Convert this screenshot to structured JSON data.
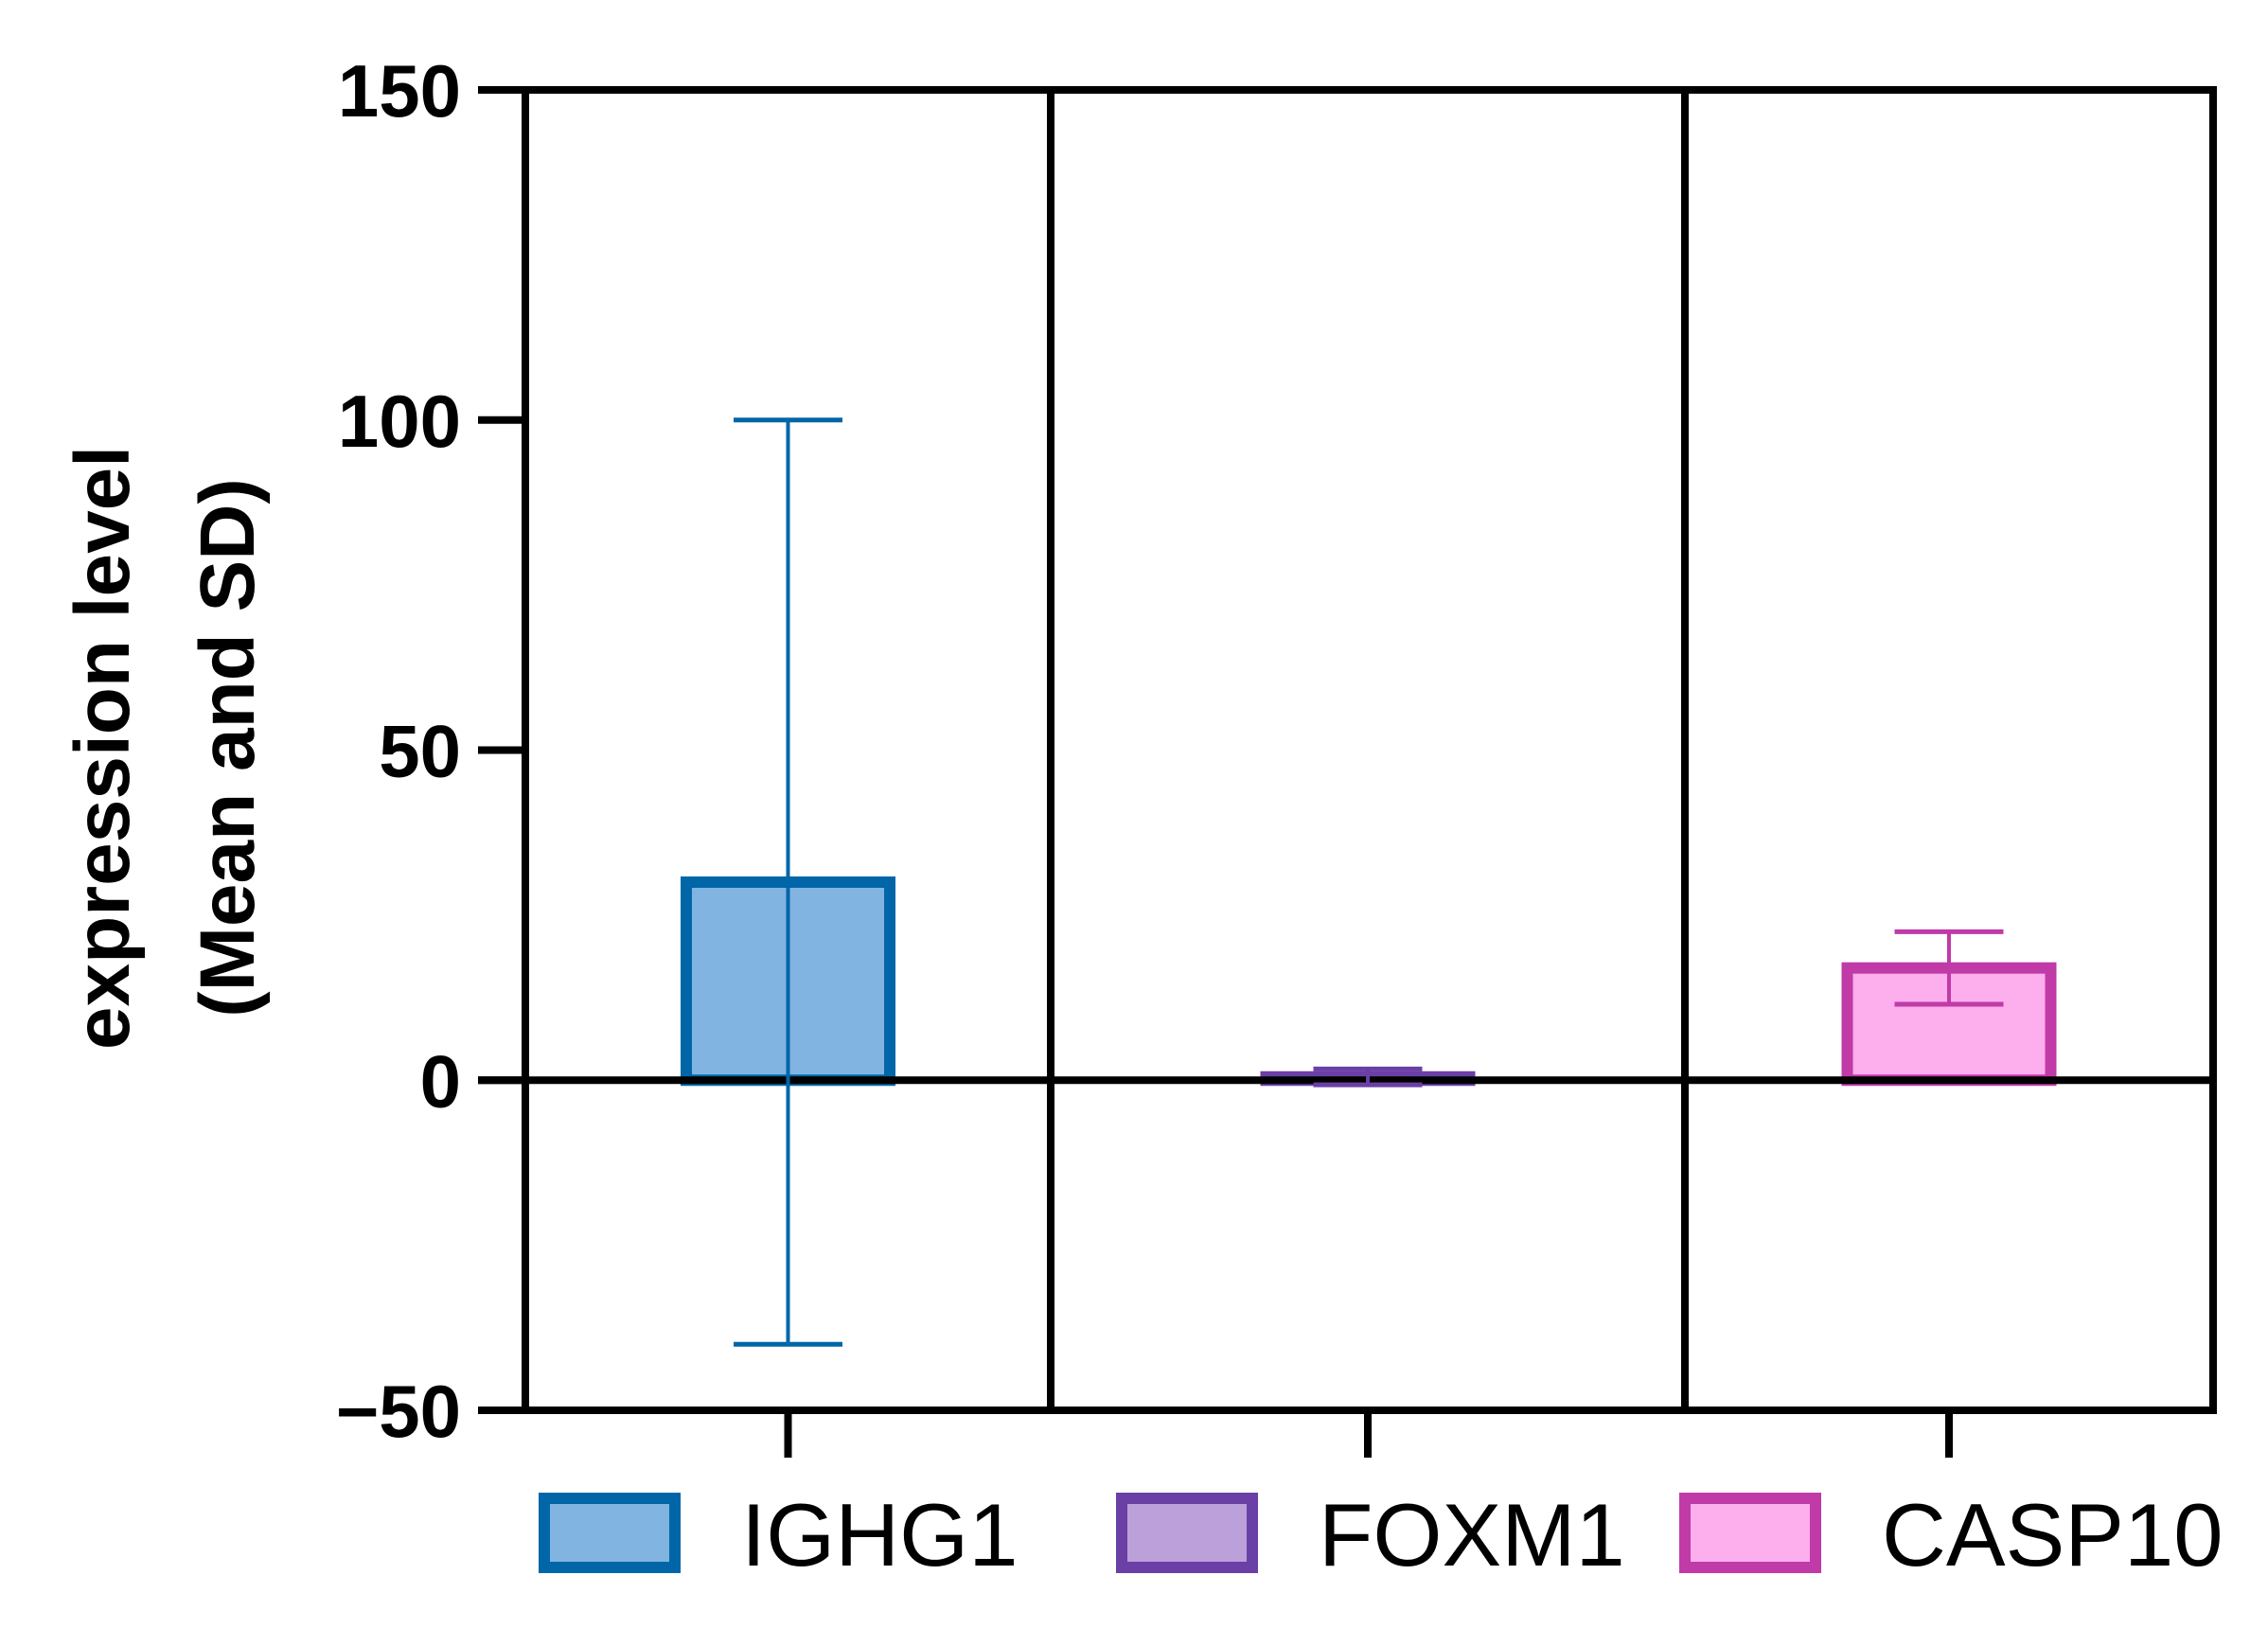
{
  "chart_data": {
    "type": "bar",
    "categories": [
      "IGHG1",
      "FOXM1",
      "CASP10"
    ],
    "series": [
      {
        "name": "IGHG1",
        "mean": 30,
        "sd": 70,
        "fill": "#82b4e2",
        "stroke": "#0066a8"
      },
      {
        "name": "FOXM1",
        "mean": 0.5,
        "sd": 1.2,
        "fill": "#bca0d9",
        "stroke": "#6a3fa6"
      },
      {
        "name": "CASP10",
        "mean": 17,
        "sd": 5.5,
        "fill": "#fcaeed",
        "stroke": "#c03aa8"
      }
    ],
    "ylabel_line1": "expression level",
    "ylabel_line2": "(Mean and SD)",
    "ylim": [
      -50,
      150
    ],
    "yticks": [
      -50,
      0,
      50,
      100,
      150
    ],
    "ytick_labels": [
      "−50",
      "0",
      "50",
      "100",
      "150"
    ],
    "grid": "vertical separators between categories",
    "legend_position": "bottom"
  }
}
